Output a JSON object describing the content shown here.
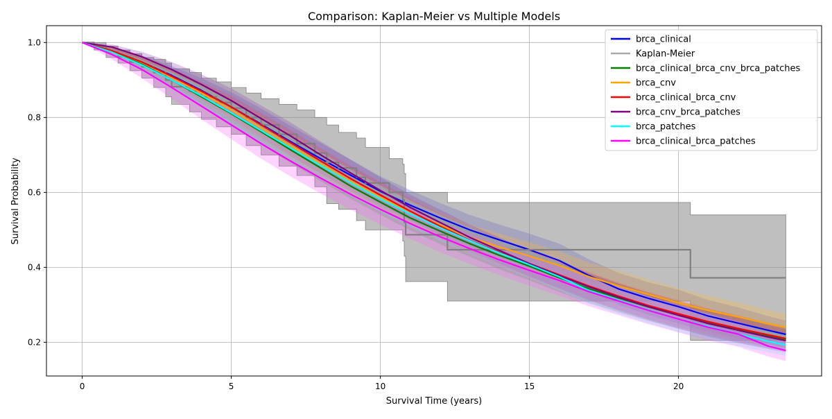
{
  "chart_data": {
    "type": "line",
    "title": "Comparison: Kaplan-Meier vs Multiple Models",
    "xlabel": "Survival Time (years)",
    "ylabel": "Survival Probability",
    "xlim": [
      -1.2,
      24.8
    ],
    "ylim": [
      0.11,
      1.045
    ],
    "xticks": [
      0,
      5,
      10,
      15,
      20
    ],
    "yticks": [
      0.2,
      0.4,
      0.6,
      0.8,
      1.0
    ],
    "xtick_labels": [
      "0",
      "5",
      "10",
      "15",
      "20"
    ],
    "ytick_labels": [
      "0.2",
      "0.4",
      "0.6",
      "0.8",
      "1.0"
    ],
    "grid": true,
    "legend_position": "top-right",
    "series": [
      {
        "name": "brca_clinical",
        "color": "#0000ff",
        "x": [
          0,
          1,
          2,
          3,
          4,
          5,
          6,
          7,
          8,
          9,
          10,
          11,
          12,
          13,
          14,
          15,
          16,
          17,
          18,
          19,
          20,
          21,
          22,
          23,
          23.6
        ],
        "y": [
          1.0,
          0.978,
          0.948,
          0.912,
          0.872,
          0.828,
          0.782,
          0.735,
          0.69,
          0.646,
          0.603,
          0.566,
          0.532,
          0.5,
          0.473,
          0.447,
          0.418,
          0.378,
          0.342,
          0.317,
          0.295,
          0.27,
          0.251,
          0.232,
          0.221
        ],
        "ci_lower": [
          1.0,
          0.97,
          0.93,
          0.885,
          0.838,
          0.79,
          0.742,
          0.695,
          0.65,
          0.606,
          0.565,
          0.527,
          0.493,
          0.46,
          0.433,
          0.405,
          0.372,
          0.335,
          0.3,
          0.273,
          0.25,
          0.228,
          0.21,
          0.194,
          0.185
        ],
        "ci_upper": [
          1.0,
          0.986,
          0.965,
          0.937,
          0.905,
          0.867,
          0.824,
          0.777,
          0.732,
          0.688,
          0.643,
          0.606,
          0.572,
          0.54,
          0.514,
          0.49,
          0.463,
          0.421,
          0.385,
          0.36,
          0.34,
          0.313,
          0.293,
          0.27,
          0.258
        ],
        "band_color": "#4040ff"
      },
      {
        "name": "Kaplan-Meier",
        "color": "#808080",
        "legend_color": "#aaaaaa",
        "step": true,
        "x": [
          0,
          0.4,
          0.8,
          1.2,
          1.6,
          2.0,
          2.4,
          2.8,
          3.0,
          3.6,
          4.0,
          4.5,
          5.0,
          5.5,
          6.0,
          6.6,
          7.2,
          7.8,
          8.2,
          8.6,
          9.2,
          9.5,
          10.3,
          10.75,
          10.8,
          10.85,
          11.2,
          12.25,
          20.4,
          23.6
        ],
        "y": [
          1.0,
          0.99,
          0.975,
          0.962,
          0.948,
          0.935,
          0.92,
          0.9,
          0.882,
          0.87,
          0.855,
          0.84,
          0.825,
          0.8,
          0.78,
          0.755,
          0.73,
          0.705,
          0.68,
          0.665,
          0.64,
          0.625,
          0.6,
          0.58,
          0.52,
          0.487,
          0.487,
          0.447,
          0.372,
          0.372
        ],
        "ci_lower": [
          1.0,
          0.98,
          0.96,
          0.945,
          0.925,
          0.905,
          0.88,
          0.855,
          0.835,
          0.815,
          0.795,
          0.775,
          0.755,
          0.725,
          0.7,
          0.67,
          0.645,
          0.615,
          0.57,
          0.555,
          0.525,
          0.5,
          0.5,
          0.47,
          0.43,
          0.362,
          0.362,
          0.31,
          0.205,
          0.205
        ],
        "ci_upper": [
          1.0,
          1.0,
          0.99,
          0.98,
          0.97,
          0.96,
          0.955,
          0.945,
          0.93,
          0.92,
          0.905,
          0.895,
          0.88,
          0.865,
          0.85,
          0.835,
          0.82,
          0.8,
          0.78,
          0.76,
          0.745,
          0.72,
          0.69,
          0.675,
          0.65,
          0.6,
          0.6,
          0.573,
          0.54,
          0.54
        ],
        "band_color": "#808080"
      },
      {
        "name": "brca_clinical_brca_cnv_brca_patches",
        "color": "#008000",
        "x": [
          0,
          1,
          2,
          3,
          4,
          5,
          6,
          7,
          8,
          9,
          10,
          11,
          12,
          13,
          14,
          15,
          16,
          17,
          18,
          19,
          20,
          21,
          22,
          23,
          23.6
        ],
        "y": [
          1.0,
          0.976,
          0.942,
          0.9,
          0.855,
          0.81,
          0.762,
          0.713,
          0.665,
          0.617,
          0.574,
          0.532,
          0.497,
          0.463,
          0.432,
          0.403,
          0.372,
          0.343,
          0.318,
          0.294,
          0.272,
          0.252,
          0.234,
          0.217,
          0.208
        ],
        "ci_lower": [
          1.0,
          0.968,
          0.928,
          0.878,
          0.828,
          0.778,
          0.728,
          0.678,
          0.63,
          0.583,
          0.54,
          0.499,
          0.462,
          0.428,
          0.395,
          0.365,
          0.334,
          0.305,
          0.28,
          0.257,
          0.236,
          0.216,
          0.199,
          0.184,
          0.176
        ],
        "ci_upper": [
          1.0,
          0.984,
          0.957,
          0.922,
          0.882,
          0.842,
          0.797,
          0.748,
          0.7,
          0.652,
          0.608,
          0.566,
          0.532,
          0.498,
          0.468,
          0.441,
          0.41,
          0.382,
          0.356,
          0.331,
          0.309,
          0.288,
          0.27,
          0.252,
          0.242
        ],
        "band_color": "#40a040"
      },
      {
        "name": "brca_cnv",
        "color": "#ffa500",
        "x": [
          0,
          1,
          2,
          3,
          4,
          5,
          6,
          7,
          8,
          9,
          10,
          11,
          12,
          13,
          14,
          15,
          16,
          17,
          18,
          19,
          20,
          21,
          22,
          23,
          23.6
        ],
        "y": [
          1.0,
          0.978,
          0.947,
          0.907,
          0.865,
          0.82,
          0.772,
          0.724,
          0.677,
          0.63,
          0.587,
          0.548,
          0.513,
          0.48,
          0.454,
          0.43,
          0.405,
          0.375,
          0.35,
          0.328,
          0.305,
          0.285,
          0.268,
          0.25,
          0.24
        ],
        "ci_lower": [
          1.0,
          0.97,
          0.932,
          0.887,
          0.84,
          0.79,
          0.74,
          0.69,
          0.643,
          0.596,
          0.553,
          0.514,
          0.479,
          0.446,
          0.418,
          0.393,
          0.367,
          0.337,
          0.31,
          0.289,
          0.266,
          0.246,
          0.23,
          0.214,
          0.205
        ],
        "ci_upper": [
          1.0,
          0.986,
          0.962,
          0.927,
          0.89,
          0.85,
          0.804,
          0.758,
          0.711,
          0.664,
          0.621,
          0.582,
          0.547,
          0.514,
          0.49,
          0.467,
          0.443,
          0.413,
          0.39,
          0.367,
          0.344,
          0.324,
          0.306,
          0.286,
          0.275
        ],
        "band_color": "#ffb830"
      },
      {
        "name": "brca_clinical_brca_cnv",
        "color": "#ff0000",
        "x": [
          0,
          1,
          2,
          3,
          4,
          5,
          6,
          7,
          8,
          9,
          10,
          11,
          12,
          13,
          14,
          15,
          16,
          17,
          18,
          19,
          20,
          21,
          22,
          23,
          23.6
        ],
        "y": [
          1.0,
          0.978,
          0.948,
          0.91,
          0.87,
          0.828,
          0.78,
          0.732,
          0.684,
          0.637,
          0.593,
          0.55,
          0.51,
          0.472,
          0.44,
          0.41,
          0.38,
          0.35,
          0.323,
          0.298,
          0.276,
          0.255,
          0.237,
          0.22,
          0.21
        ],
        "ci_lower": [
          1.0,
          0.97,
          0.935,
          0.89,
          0.845,
          0.798,
          0.748,
          0.698,
          0.65,
          0.603,
          0.558,
          0.516,
          0.476,
          0.438,
          0.405,
          0.374,
          0.343,
          0.313,
          0.287,
          0.262,
          0.24,
          0.22,
          0.203,
          0.188,
          0.18
        ],
        "ci_upper": [
          1.0,
          0.986,
          0.962,
          0.93,
          0.895,
          0.858,
          0.812,
          0.766,
          0.718,
          0.671,
          0.628,
          0.584,
          0.544,
          0.506,
          0.475,
          0.446,
          0.417,
          0.387,
          0.359,
          0.334,
          0.312,
          0.29,
          0.271,
          0.252,
          0.242
        ],
        "band_color": "#ff5050"
      },
      {
        "name": "brca_cnv_brca_patches",
        "color": "#800080",
        "x": [
          0,
          1,
          2,
          3,
          4,
          5,
          6,
          7,
          8,
          9,
          10,
          11,
          12,
          13,
          14,
          15,
          16,
          17,
          18,
          19,
          20,
          21,
          22,
          23,
          23.6
        ],
        "y": [
          1.0,
          0.988,
          0.962,
          0.928,
          0.888,
          0.845,
          0.797,
          0.75,
          0.7,
          0.652,
          0.605,
          0.56,
          0.52,
          0.48,
          0.445,
          0.41,
          0.378,
          0.348,
          0.32,
          0.295,
          0.272,
          0.25,
          0.232,
          0.214,
          0.204
        ],
        "ci_lower": [
          1.0,
          0.98,
          0.948,
          0.905,
          0.86,
          0.812,
          0.762,
          0.715,
          0.665,
          0.617,
          0.57,
          0.526,
          0.486,
          0.446,
          0.41,
          0.376,
          0.344,
          0.312,
          0.284,
          0.259,
          0.236,
          0.215,
          0.198,
          0.182,
          0.173
        ],
        "ci_upper": [
          1.0,
          0.995,
          0.975,
          0.948,
          0.915,
          0.878,
          0.832,
          0.786,
          0.736,
          0.687,
          0.64,
          0.594,
          0.554,
          0.514,
          0.48,
          0.445,
          0.413,
          0.384,
          0.356,
          0.331,
          0.308,
          0.285,
          0.266,
          0.246,
          0.235
        ],
        "band_color": "#9040b0"
      },
      {
        "name": "brca_patches",
        "color": "#00ffff",
        "x": [
          0,
          1,
          2,
          3,
          4,
          5,
          6,
          7,
          8,
          9,
          10,
          11,
          12,
          13,
          14,
          15,
          16,
          17,
          18,
          19,
          20,
          21,
          22,
          23,
          23.6
        ],
        "y": [
          1.0,
          0.974,
          0.94,
          0.9,
          0.858,
          0.812,
          0.765,
          0.718,
          0.672,
          0.626,
          0.583,
          0.543,
          0.506,
          0.471,
          0.438,
          0.407,
          0.375,
          0.338,
          0.312,
          0.286,
          0.262,
          0.242,
          0.222,
          0.203,
          0.193
        ],
        "ci_lower": [
          1.0,
          0.966,
          0.926,
          0.879,
          0.832,
          0.782,
          0.733,
          0.684,
          0.637,
          0.591,
          0.548,
          0.508,
          0.471,
          0.436,
          0.403,
          0.371,
          0.338,
          0.302,
          0.275,
          0.25,
          0.227,
          0.208,
          0.19,
          0.173,
          0.164
        ],
        "ci_upper": [
          1.0,
          0.982,
          0.954,
          0.921,
          0.884,
          0.842,
          0.797,
          0.752,
          0.707,
          0.661,
          0.618,
          0.578,
          0.541,
          0.506,
          0.473,
          0.443,
          0.412,
          0.374,
          0.349,
          0.322,
          0.297,
          0.276,
          0.254,
          0.233,
          0.222
        ],
        "band_color": "#60ffff"
      },
      {
        "name": "brca_clinical_brca_patches",
        "color": "#ff00ff",
        "x": [
          0,
          1,
          2,
          3,
          4,
          5,
          6,
          7,
          8,
          9,
          10,
          11,
          12,
          13,
          14,
          15,
          16,
          17,
          18,
          19,
          20,
          21,
          22,
          23,
          23.6
        ],
        "y": [
          1.0,
          0.968,
          0.928,
          0.88,
          0.83,
          0.78,
          0.73,
          0.683,
          0.638,
          0.595,
          0.555,
          0.517,
          0.482,
          0.45,
          0.42,
          0.392,
          0.365,
          0.335,
          0.31,
          0.285,
          0.262,
          0.24,
          0.222,
          0.19,
          0.178
        ],
        "ci_lower": [
          1.0,
          0.955,
          0.905,
          0.85,
          0.795,
          0.742,
          0.69,
          0.642,
          0.597,
          0.554,
          0.514,
          0.476,
          0.441,
          0.409,
          0.379,
          0.351,
          0.324,
          0.296,
          0.272,
          0.248,
          0.226,
          0.205,
          0.188,
          0.162,
          0.15
        ],
        "ci_upper": [
          1.0,
          0.98,
          0.95,
          0.91,
          0.865,
          0.818,
          0.77,
          0.724,
          0.679,
          0.636,
          0.596,
          0.558,
          0.523,
          0.491,
          0.461,
          0.433,
          0.406,
          0.374,
          0.348,
          0.322,
          0.298,
          0.275,
          0.256,
          0.22,
          0.207
        ],
        "band_color": "#ff60ff"
      }
    ]
  }
}
